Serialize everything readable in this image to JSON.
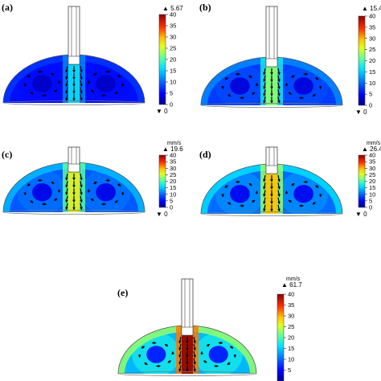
{
  "colors": {
    "scale": [
      "#00008f",
      "#0000ff",
      "#0060ff",
      "#00c0ff",
      "#30ffcf",
      "#9fff60",
      "#ffff00",
      "#ff9000",
      "#ff2000",
      "#8f0000"
    ],
    "background": "#ffffff"
  },
  "colorbar": {
    "ticks": [
      "40",
      "35",
      "30",
      "25",
      "20",
      "15",
      "10",
      "5",
      "0"
    ],
    "min_marker": "▼ 0",
    "max_marker_glyph": "▲"
  },
  "panels": [
    {
      "label": "(a)",
      "max": "5.67",
      "unit": "",
      "intensity": 0.15
    },
    {
      "label": "(b)",
      "max": "15.4",
      "unit": "",
      "intensity": 0.38
    },
    {
      "label": "(c)",
      "max": "19.6",
      "unit": "mm/s",
      "intensity": 0.52
    },
    {
      "label": "(d)",
      "max": "26.4",
      "unit": "mm/s",
      "intensity": 0.62
    },
    {
      "label": "(e)",
      "max": "61.7",
      "unit": "mm/s",
      "intensity": 1.0
    }
  ]
}
